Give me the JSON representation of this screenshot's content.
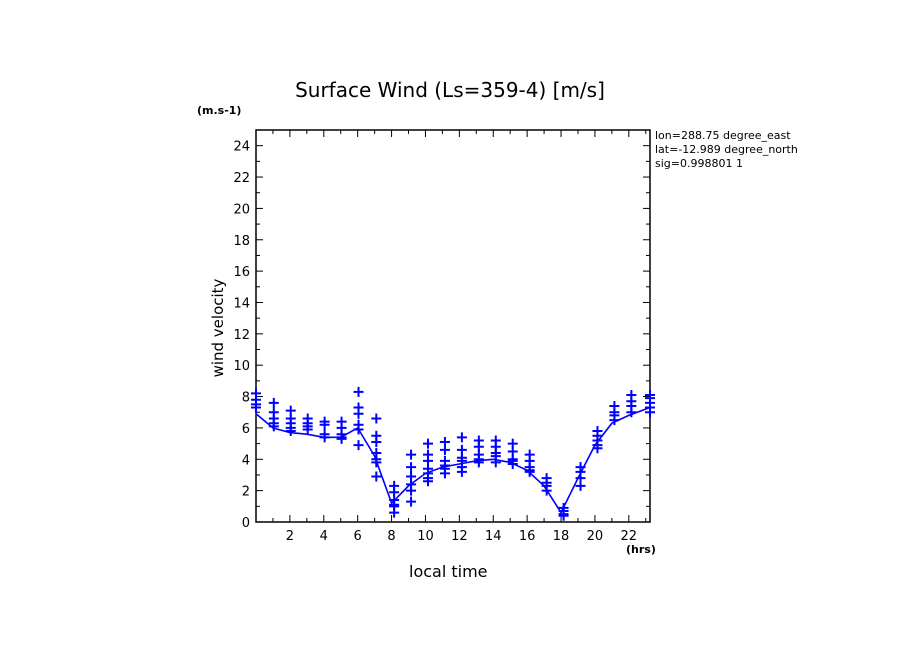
{
  "chart_data": {
    "type": "scatter",
    "title": "Surface Wind  (Ls=359-4) [m/s]",
    "xlabel": "local time",
    "x_unit": "(hrs)",
    "ylabel": "wind velocity",
    "y_unit": "(m.s-1)",
    "xlim": [
      0,
      23.25
    ],
    "ylim": [
      0,
      25
    ],
    "x_ticks": [
      2,
      4,
      6,
      8,
      10,
      12,
      14,
      16,
      18,
      20,
      22
    ],
    "y_ticks": [
      0,
      2,
      4,
      6,
      8,
      10,
      12,
      14,
      16,
      18,
      20,
      22,
      24
    ],
    "grid": false,
    "color": "#0000ff",
    "info": [
      "lon=288.75 degree_east",
      "lat=-12.989 degree_north",
      "sig=0.998801 1"
    ],
    "mean_line": {
      "x": [
        0,
        1,
        2,
        3,
        4,
        5,
        6,
        7,
        8,
        9,
        10,
        11,
        12,
        13,
        14,
        15,
        16,
        17,
        18,
        19,
        20,
        21,
        22,
        23.25
      ],
      "y": [
        6.9,
        6.0,
        5.7,
        5.6,
        5.4,
        5.4,
        6.0,
        4.2,
        1.2,
        2.3,
        3.1,
        3.5,
        3.7,
        3.9,
        4.0,
        3.8,
        3.3,
        2.3,
        0.6,
        2.8,
        4.9,
        6.3,
        6.8,
        7.3
      ]
    },
    "markers": [
      {
        "x": 0,
        "y": [
          8.2,
          7.8,
          7.5,
          7.3
        ]
      },
      {
        "x": 1.05,
        "y": [
          7.6,
          7.0,
          6.6,
          6.3,
          6.1
        ]
      },
      {
        "x": 2.05,
        "y": [
          7.1,
          6.6,
          6.3,
          6.0,
          5.8
        ]
      },
      {
        "x": 3.05,
        "y": [
          6.6,
          6.3,
          6.1,
          5.9
        ]
      },
      {
        "x": 4.05,
        "y": [
          6.4,
          6.2,
          5.6,
          5.4
        ]
      },
      {
        "x": 5.05,
        "y": [
          6.4,
          6.0,
          5.6,
          5.4,
          5.3
        ]
      },
      {
        "x": 6.05,
        "y": [
          8.3,
          7.3,
          6.9,
          6.2,
          5.9,
          4.9
        ]
      },
      {
        "x": 7.1,
        "y": [
          6.6,
          5.5,
          5.1,
          4.4,
          4.0,
          3.8,
          2.9
        ]
      },
      {
        "x": 8.15,
        "y": [
          2.3,
          1.9,
          1.4,
          1.1,
          1.0,
          0.6
        ]
      },
      {
        "x": 9.15,
        "y": [
          4.3,
          3.5,
          2.9,
          2.4,
          2.0,
          1.3
        ]
      },
      {
        "x": 10.15,
        "y": [
          5.0,
          4.3,
          3.9,
          3.4,
          3.1,
          2.8,
          2.6
        ]
      },
      {
        "x": 11.15,
        "y": [
          5.1,
          4.6,
          3.9,
          3.6,
          3.4,
          3.1
        ]
      },
      {
        "x": 12.15,
        "y": [
          5.4,
          4.6,
          4.1,
          3.9,
          3.5,
          3.2
        ]
      },
      {
        "x": 13.15,
        "y": [
          5.2,
          4.8,
          4.3,
          4.0,
          3.8
        ]
      },
      {
        "x": 14.15,
        "y": [
          5.2,
          4.8,
          4.4,
          4.2,
          3.8
        ]
      },
      {
        "x": 15.15,
        "y": [
          5.0,
          4.5,
          4.0,
          3.9,
          3.7
        ]
      },
      {
        "x": 16.15,
        "y": [
          4.3,
          3.9,
          3.5,
          3.3,
          3.2
        ]
      },
      {
        "x": 17.15,
        "y": [
          2.8,
          2.5,
          2.3,
          2.0
        ]
      },
      {
        "x": 18.15,
        "y": [
          0.9,
          0.7,
          0.5,
          0.4
        ]
      },
      {
        "x": 19.15,
        "y": [
          3.5,
          3.2,
          2.8,
          2.3
        ]
      },
      {
        "x": 20.15,
        "y": [
          5.8,
          5.5,
          5.2,
          4.9,
          4.7
        ]
      },
      {
        "x": 21.15,
        "y": [
          7.4,
          7.0,
          6.8,
          6.5
        ]
      },
      {
        "x": 22.15,
        "y": [
          8.1,
          7.7,
          7.4,
          7.0
        ]
      },
      {
        "x": 23.25,
        "y": [
          8.1,
          7.9,
          7.6,
          7.3,
          7.0
        ]
      }
    ]
  }
}
